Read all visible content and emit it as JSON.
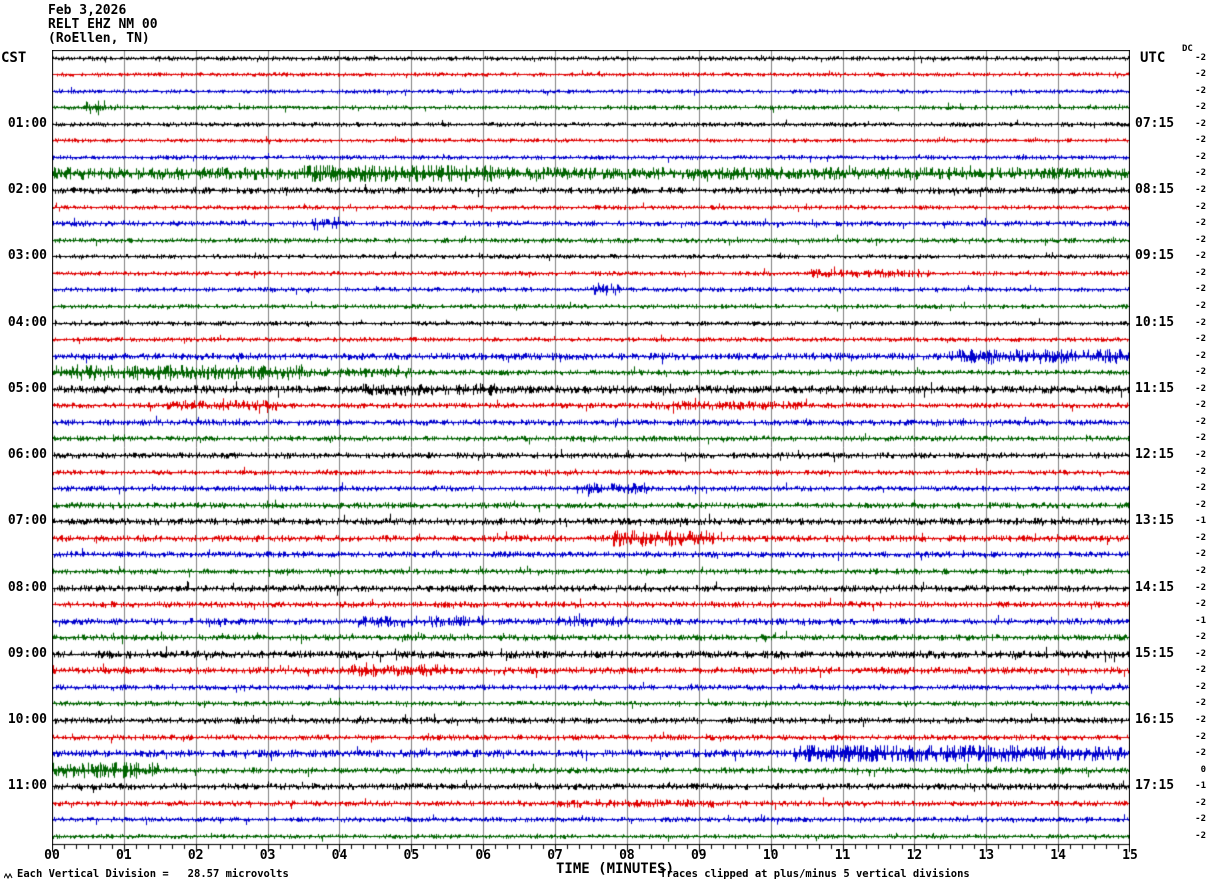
{
  "header": {
    "date": "Feb 3,2026",
    "station": "RELT EHZ NM 00",
    "location": "(RoEllen, TN)"
  },
  "axis": {
    "left_header": "CST",
    "right_header": "UTC",
    "dc_header": "DC",
    "x_axis_label": "TIME (MINUTES)",
    "x_tick_labels": [
      "00",
      "01",
      "02",
      "03",
      "04",
      "05",
      "06",
      "07",
      "08",
      "09",
      "10",
      "11",
      "12",
      "13",
      "14",
      "15"
    ],
    "footer_scale_note": "Each Vertical Division =   28.57 microvolts",
    "footer_clip_note": "Traces clipped at plus/minus 5 vertical divisions",
    "scale_marker_icon": "waveform-scale-marker-icon"
  },
  "colors": {
    "black": "#000000",
    "red": "#e00000",
    "blue": "#0000cd",
    "green": "#006400",
    "grid": "#808080",
    "border": "#000000",
    "background": "#ffffff"
  },
  "chart_data": {
    "type": "line",
    "subtype": "helicorder-seismogram",
    "title": "RELT EHZ NM 00 (RoEllen, TN) Feb 3,2026",
    "x_range_minutes": [
      0,
      15
    ],
    "row_duration_minutes": 15,
    "rows_count": 48,
    "trace_color_cycle": [
      "black",
      "red",
      "blue",
      "green"
    ],
    "clip_divisions": 5,
    "microvolts_per_division": 28.57,
    "left_timezone_offset_note": "CST rows start on the hour/quarter; right labels are UTC at row end",
    "rows": [
      {
        "color": "black",
        "left_label": "",
        "right_label": "",
        "dc": -2,
        "amp": 1.0,
        "events": []
      },
      {
        "color": "red",
        "left_label": "",
        "right_label": "",
        "dc": -2,
        "amp": 0.9,
        "events": []
      },
      {
        "color": "blue",
        "left_label": "",
        "right_label": "",
        "dc": -2,
        "amp": 0.9,
        "events": []
      },
      {
        "color": "green",
        "left_label": "",
        "right_label": "",
        "dc": -2,
        "amp": 1.0,
        "events": [
          [
            0.45,
            0.75,
            3.5
          ]
        ]
      },
      {
        "color": "black",
        "left_label": "01:00",
        "right_label": "07:15",
        "dc": -2,
        "amp": 1.0,
        "events": []
      },
      {
        "color": "red",
        "left_label": "",
        "right_label": "",
        "dc": -2,
        "amp": 0.9,
        "events": []
      },
      {
        "color": "blue",
        "left_label": "",
        "right_label": "",
        "dc": -2,
        "amp": 1.0,
        "events": []
      },
      {
        "color": "green",
        "left_label": "",
        "right_label": "",
        "dc": -2,
        "amp": 2.6,
        "events": [
          [
            3.5,
            6.2,
            1.6
          ]
        ]
      },
      {
        "color": "black",
        "left_label": "02:00",
        "right_label": "08:15",
        "dc": -2,
        "amp": 1.4,
        "events": []
      },
      {
        "color": "red",
        "left_label": "",
        "right_label": "",
        "dc": -2,
        "amp": 1.0,
        "events": []
      },
      {
        "color": "blue",
        "left_label": "",
        "right_label": "",
        "dc": -2,
        "amp": 1.2,
        "events": [
          [
            3.6,
            4.0,
            2.2
          ]
        ]
      },
      {
        "color": "green",
        "left_label": "",
        "right_label": "",
        "dc": -2,
        "amp": 1.1,
        "events": []
      },
      {
        "color": "black",
        "left_label": "03:00",
        "right_label": "09:15",
        "dc": -2,
        "amp": 1.0,
        "events": []
      },
      {
        "color": "red",
        "left_label": "",
        "right_label": "",
        "dc": -2,
        "amp": 1.0,
        "events": [
          [
            10.5,
            12.2,
            1.8
          ]
        ]
      },
      {
        "color": "blue",
        "left_label": "",
        "right_label": "",
        "dc": -2,
        "amp": 1.0,
        "events": [
          [
            7.5,
            7.9,
            2.4
          ]
        ]
      },
      {
        "color": "green",
        "left_label": "",
        "right_label": "",
        "dc": -2,
        "amp": 1.0,
        "events": []
      },
      {
        "color": "black",
        "left_label": "04:00",
        "right_label": "10:15",
        "dc": -2,
        "amp": 1.0,
        "events": []
      },
      {
        "color": "red",
        "left_label": "",
        "right_label": "",
        "dc": -2,
        "amp": 1.0,
        "events": []
      },
      {
        "color": "blue",
        "left_label": "",
        "right_label": "",
        "dc": -2,
        "amp": 1.5,
        "events": [
          [
            12.5,
            15,
            2.0
          ]
        ]
      },
      {
        "color": "green",
        "left_label": "",
        "right_label": "",
        "dc": -2,
        "amp": 1.2,
        "events": [
          [
            0,
            3.5,
            2.6
          ],
          [
            3.5,
            5,
            1.6
          ]
        ]
      },
      {
        "color": "black",
        "left_label": "05:00",
        "right_label": "11:15",
        "dc": -2,
        "amp": 1.7,
        "events": [
          [
            4.3,
            6.2,
            1.5
          ]
        ]
      },
      {
        "color": "red",
        "left_label": "",
        "right_label": "",
        "dc": -2,
        "amp": 1.2,
        "events": [
          [
            1.6,
            3.2,
            1.8
          ],
          [
            8.3,
            10.5,
            1.6
          ]
        ]
      },
      {
        "color": "blue",
        "left_label": "",
        "right_label": "",
        "dc": -2,
        "amp": 1.3,
        "events": []
      },
      {
        "color": "green",
        "left_label": "",
        "right_label": "",
        "dc": -2,
        "amp": 1.2,
        "events": []
      },
      {
        "color": "black",
        "left_label": "06:00",
        "right_label": "12:15",
        "dc": -2,
        "amp": 1.3,
        "events": []
      },
      {
        "color": "red",
        "left_label": "",
        "right_label": "",
        "dc": -2,
        "amp": 1.1,
        "events": []
      },
      {
        "color": "blue",
        "left_label": "",
        "right_label": "",
        "dc": -2,
        "amp": 1.2,
        "events": [
          [
            7.3,
            8.3,
            2.0
          ]
        ]
      },
      {
        "color": "green",
        "left_label": "",
        "right_label": "",
        "dc": -2,
        "amp": 1.3,
        "events": []
      },
      {
        "color": "black",
        "left_label": "07:00",
        "right_label": "13:15",
        "dc": -1,
        "amp": 1.5,
        "events": []
      },
      {
        "color": "red",
        "left_label": "",
        "right_label": "",
        "dc": -2,
        "amp": 1.4,
        "events": [
          [
            7.8,
            9.2,
            2.6
          ]
        ]
      },
      {
        "color": "blue",
        "left_label": "",
        "right_label": "",
        "dc": -2,
        "amp": 1.3,
        "events": []
      },
      {
        "color": "green",
        "left_label": "",
        "right_label": "",
        "dc": -2,
        "amp": 1.2,
        "events": []
      },
      {
        "color": "black",
        "left_label": "08:00",
        "right_label": "14:15",
        "dc": -2,
        "amp": 1.4,
        "events": []
      },
      {
        "color": "red",
        "left_label": "",
        "right_label": "",
        "dc": -2,
        "amp": 1.3,
        "events": []
      },
      {
        "color": "blue",
        "left_label": "",
        "right_label": "",
        "dc": -1,
        "amp": 1.4,
        "events": [
          [
            4.2,
            6.0,
            1.7
          ],
          [
            7.0,
            8.0,
            1.6
          ]
        ]
      },
      {
        "color": "green",
        "left_label": "",
        "right_label": "",
        "dc": -2,
        "amp": 1.3,
        "events": []
      },
      {
        "color": "black",
        "left_label": "09:00",
        "right_label": "15:15",
        "dc": -2,
        "amp": 1.6,
        "events": []
      },
      {
        "color": "red",
        "left_label": "",
        "right_label": "",
        "dc": -2,
        "amp": 1.5,
        "events": [
          [
            4.0,
            5.5,
            1.7
          ]
        ]
      },
      {
        "color": "blue",
        "left_label": "",
        "right_label": "",
        "dc": -2,
        "amp": 1.2,
        "events": []
      },
      {
        "color": "green",
        "left_label": "",
        "right_label": "",
        "dc": -2,
        "amp": 1.1,
        "events": []
      },
      {
        "color": "black",
        "left_label": "10:00",
        "right_label": "16:15",
        "dc": -2,
        "amp": 1.4,
        "events": []
      },
      {
        "color": "red",
        "left_label": "",
        "right_label": "",
        "dc": -2,
        "amp": 1.2,
        "events": []
      },
      {
        "color": "blue",
        "left_label": "",
        "right_label": "",
        "dc": -2,
        "amp": 1.6,
        "events": [
          [
            10.3,
            13.5,
            2.6
          ],
          [
            13.5,
            15,
            1.9
          ]
        ]
      },
      {
        "color": "green",
        "left_label": "",
        "right_label": "",
        "dc": 0,
        "amp": 1.3,
        "events": [
          [
            0,
            1.5,
            2.6
          ]
        ]
      },
      {
        "color": "black",
        "left_label": "11:00",
        "right_label": "17:15",
        "dc": -1,
        "amp": 1.4,
        "events": []
      },
      {
        "color": "red",
        "left_label": "",
        "right_label": "",
        "dc": -2,
        "amp": 1.2,
        "events": [
          [
            7.0,
            9.2,
            1.5
          ]
        ]
      },
      {
        "color": "blue",
        "left_label": "",
        "right_label": "",
        "dc": -2,
        "amp": 1.1,
        "events": []
      },
      {
        "color": "green",
        "left_label": "",
        "right_label": "",
        "dc": -2,
        "amp": 1.0,
        "events": []
      }
    ]
  }
}
